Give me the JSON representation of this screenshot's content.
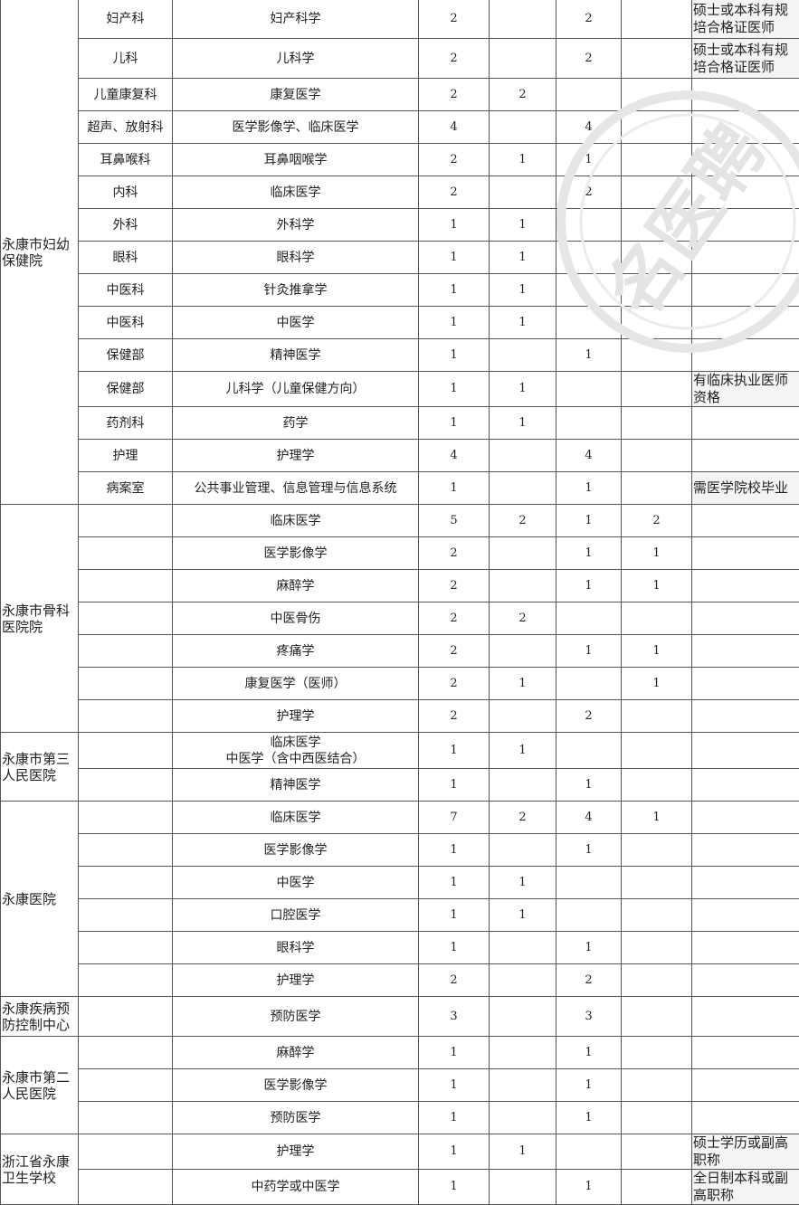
{
  "watermark": "名医聘",
  "groups": [
    {
      "name": "永康市妇幼保健院",
      "rows": [
        [
          "妇产科",
          "妇产科学",
          "2",
          "",
          "2",
          "",
          "硕士或本科有规培合格证医师"
        ],
        [
          "儿科",
          "儿科学",
          "2",
          "",
          "2",
          "",
          "硕士或本科有规培合格证医师"
        ],
        [
          "儿童康复科",
          "康复医学",
          "2",
          "2",
          "",
          "",
          ""
        ],
        [
          "超声、放射科",
          "医学影像学、临床医学",
          "4",
          "",
          "4",
          "",
          ""
        ],
        [
          "耳鼻喉科",
          "耳鼻咽喉学",
          "2",
          "1",
          "1",
          "",
          ""
        ],
        [
          "内科",
          "临床医学",
          "2",
          "",
          "2",
          "",
          ""
        ],
        [
          "外科",
          "外科学",
          "1",
          "1",
          "",
          "",
          ""
        ],
        [
          "眼科",
          "眼科学",
          "1",
          "1",
          "",
          "",
          ""
        ],
        [
          "中医科",
          "针灸推拿学",
          "1",
          "1",
          "",
          "",
          ""
        ],
        [
          "中医科",
          "中医学",
          "1",
          "1",
          "",
          "",
          ""
        ],
        [
          "保健部",
          "精神医学",
          "1",
          "",
          "1",
          "",
          ""
        ],
        [
          "保健部",
          "儿科学（儿童保健方向）",
          "1",
          "1",
          "",
          "",
          "有临床执业医师资格"
        ],
        [
          "药剂科",
          "药学",
          "1",
          "1",
          "",
          "",
          ""
        ],
        [
          "护理",
          "护理学",
          "4",
          "",
          "4",
          "",
          ""
        ],
        [
          "病案室",
          "公共事业管理、信息管理与信息系统",
          "1",
          "",
          "1",
          "",
          "需医学院校毕业"
        ]
      ]
    },
    {
      "name": "永康市骨科医院院",
      "rows": [
        [
          "",
          "临床医学",
          "5",
          "2",
          "1",
          "2",
          ""
        ],
        [
          "",
          "医学影像学",
          "2",
          "",
          "1",
          "1",
          ""
        ],
        [
          "",
          "麻醉学",
          "2",
          "",
          "1",
          "1",
          ""
        ],
        [
          "",
          "中医骨伤",
          "2",
          "2",
          "",
          "",
          ""
        ],
        [
          "",
          "疼痛学",
          "2",
          "",
          "1",
          "1",
          ""
        ],
        [
          "",
          "康复医学（医师）",
          "2",
          "1",
          "",
          "1",
          ""
        ],
        [
          "",
          "护理学",
          "2",
          "",
          "2",
          "",
          ""
        ]
      ]
    },
    {
      "name": "永康市第三人民医院",
      "rows": [
        [
          "",
          "临床医学\n中医学（含中西医结合）",
          "1",
          "1",
          "",
          "",
          ""
        ],
        [
          "",
          "精神医学",
          "1",
          "",
          "1",
          "",
          ""
        ]
      ]
    },
    {
      "name": "永康医院",
      "rows": [
        [
          "",
          "临床医学",
          "7",
          "2",
          "4",
          "1",
          ""
        ],
        [
          "",
          "医学影像学",
          "1",
          "",
          "1",
          "",
          ""
        ],
        [
          "",
          "中医学",
          "1",
          "1",
          "",
          "",
          ""
        ],
        [
          "",
          "口腔医学",
          "1",
          "1",
          "",
          "",
          ""
        ],
        [
          "",
          "眼科学",
          "1",
          "",
          "1",
          "",
          ""
        ],
        [
          "",
          "护理学",
          "2",
          "",
          "2",
          "",
          ""
        ]
      ]
    },
    {
      "name": "永康疾病预防控制中心",
      "rows": [
        [
          "",
          "预防医学",
          "3",
          "",
          "3",
          "",
          ""
        ]
      ]
    },
    {
      "name": "永康市第二人民医院",
      "rows": [
        [
          "",
          "麻醉学",
          "1",
          "",
          "1",
          "",
          ""
        ],
        [
          "",
          "医学影像学",
          "1",
          "",
          "1",
          "",
          ""
        ],
        [
          "",
          "预防医学",
          "1",
          "",
          "1",
          "",
          ""
        ]
      ]
    },
    {
      "name": "浙江省永康卫生学校",
      "rows": [
        [
          "",
          "护理学",
          "1",
          "1",
          "",
          "",
          "硕士学历或副高职称"
        ],
        [
          "",
          "中药学或中医学",
          "1",
          "",
          "1",
          "",
          "全日制本科或副高职称"
        ]
      ]
    }
  ]
}
